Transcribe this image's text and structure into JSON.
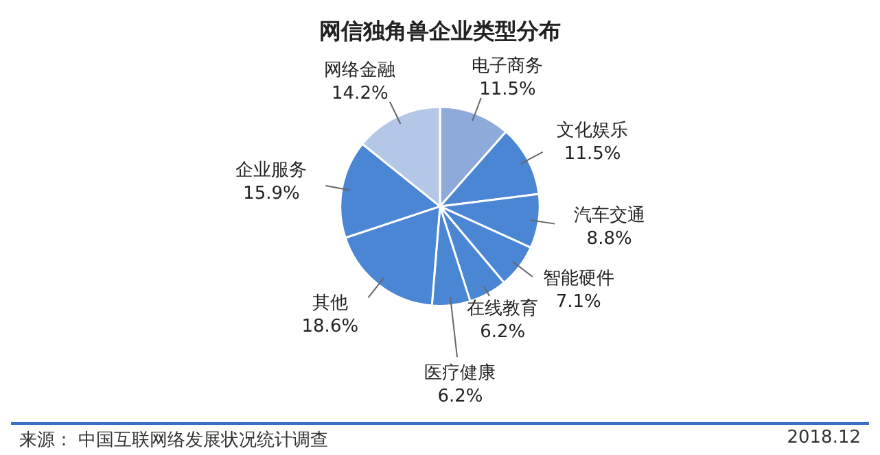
{
  "chart_data": {
    "type": "pie",
    "title": "网信独角兽企业类型分布",
    "categories": [
      "电子商务",
      "文化娱乐",
      "汽车交通",
      "智能硬件",
      "在线教育",
      "医疗健康",
      "其他",
      "企业服务",
      "网络金融"
    ],
    "values": [
      11.5,
      11.5,
      8.8,
      7.1,
      6.2,
      6.2,
      18.6,
      15.9,
      14.2
    ],
    "value_labels": [
      "11.5%",
      "11.5%",
      "8.8%",
      "7.1%",
      "6.2%",
      "6.2%",
      "18.6%",
      "15.9%",
      "14.2%"
    ],
    "colors": [
      "#8eaadb",
      "#4a86d4",
      "#4a86d4",
      "#4a86d4",
      "#4a86d4",
      "#4a86d4",
      "#4a86d4",
      "#4a86d4",
      "#b4c7e7"
    ],
    "legend": false,
    "annotations": [
      "来源： 中国互联网络发展状况统计调查",
      "2018.12"
    ]
  }
}
